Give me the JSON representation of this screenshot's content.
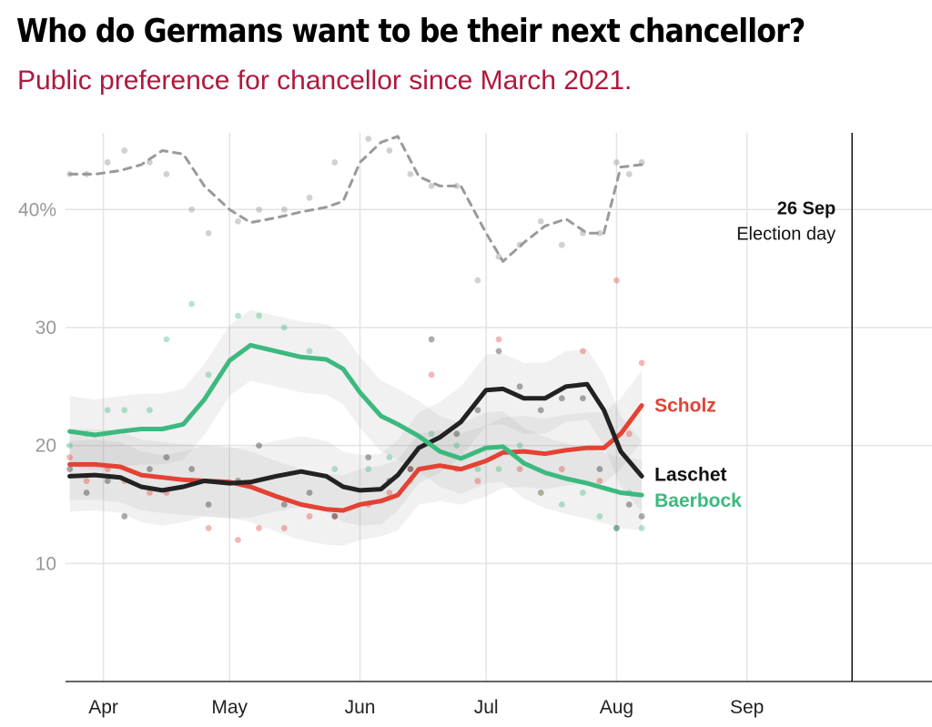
{
  "title": "Who do Germans want to be their next chancellor?",
  "subtitle": "Public preference for chancellor since March 2021.",
  "chart_data": {
    "type": "line",
    "x_axis": {
      "min": "2021-03-23",
      "max": "2021-10-15",
      "ticks": [
        {
          "date": "2021-04-01",
          "label": "Apr"
        },
        {
          "date": "2021-05-01",
          "label": "May"
        },
        {
          "date": "2021-06-01",
          "label": "Jun"
        },
        {
          "date": "2021-07-01",
          "label": "Jul"
        },
        {
          "date": "2021-08-01",
          "label": "Aug"
        },
        {
          "date": "2021-09-01",
          "label": "Sep"
        }
      ]
    },
    "y_axis": {
      "min": 0,
      "max": 46.5,
      "ticks": [
        {
          "value": 10,
          "label": "10"
        },
        {
          "value": 20,
          "label": "20"
        },
        {
          "value": 30,
          "label": "30"
        },
        {
          "value": 40,
          "label": "40%"
        }
      ]
    },
    "grid": true,
    "annotation": {
      "date": "2021-09-26",
      "label_date": "26 Sep",
      "label_text": "Election day"
    },
    "series": [
      {
        "name": "Scholz",
        "color": "#e34234",
        "x": [
          "2021-03-24",
          "2021-03-30",
          "2021-04-05",
          "2021-04-10",
          "2021-04-15",
          "2021-04-20",
          "2021-04-25",
          "2021-05-01",
          "2021-05-06",
          "2021-05-12",
          "2021-05-18",
          "2021-05-24",
          "2021-05-28",
          "2021-06-01",
          "2021-06-06",
          "2021-06-10",
          "2021-06-15",
          "2021-06-20",
          "2021-06-25",
          "2021-07-01",
          "2021-07-05",
          "2021-07-10",
          "2021-07-15",
          "2021-07-20",
          "2021-07-25",
          "2021-07-29",
          "2021-08-02",
          "2021-08-07"
        ],
        "values": [
          18.4,
          18.4,
          18.2,
          17.5,
          17.3,
          17.1,
          17.0,
          16.9,
          16.5,
          15.7,
          15.0,
          14.6,
          14.5,
          15.0,
          15.3,
          15.8,
          18.0,
          18.3,
          18.0,
          18.7,
          19.4,
          19.5,
          19.3,
          19.6,
          19.8,
          19.8,
          21.0,
          23.4
        ]
      },
      {
        "name": "Laschet",
        "color": "#222222",
        "x": [
          "2021-03-24",
          "2021-03-30",
          "2021-04-05",
          "2021-04-10",
          "2021-04-15",
          "2021-04-20",
          "2021-04-25",
          "2021-05-01",
          "2021-05-06",
          "2021-05-12",
          "2021-05-18",
          "2021-05-24",
          "2021-05-28",
          "2021-06-01",
          "2021-06-06",
          "2021-06-10",
          "2021-06-15",
          "2021-06-20",
          "2021-06-25",
          "2021-07-01",
          "2021-07-05",
          "2021-07-10",
          "2021-07-15",
          "2021-07-20",
          "2021-07-25",
          "2021-07-29",
          "2021-08-02",
          "2021-08-07"
        ],
        "values": [
          17.4,
          17.5,
          17.3,
          16.5,
          16.2,
          16.5,
          17.0,
          16.8,
          16.9,
          17.4,
          17.8,
          17.4,
          16.5,
          16.2,
          16.3,
          17.5,
          19.8,
          20.7,
          22.0,
          24.7,
          24.8,
          24.0,
          24.0,
          25.0,
          25.2,
          23.0,
          19.5,
          17.4
        ]
      },
      {
        "name": "Baerbock",
        "color": "#3cb97f",
        "x": [
          "2021-03-24",
          "2021-03-30",
          "2021-04-05",
          "2021-04-10",
          "2021-04-15",
          "2021-04-20",
          "2021-04-25",
          "2021-05-01",
          "2021-05-06",
          "2021-05-12",
          "2021-05-18",
          "2021-05-24",
          "2021-05-28",
          "2021-06-01",
          "2021-06-06",
          "2021-06-10",
          "2021-06-15",
          "2021-06-20",
          "2021-06-25",
          "2021-07-01",
          "2021-07-05",
          "2021-07-10",
          "2021-07-15",
          "2021-07-20",
          "2021-07-25",
          "2021-07-29",
          "2021-08-02",
          "2021-08-07"
        ],
        "values": [
          21.2,
          20.9,
          21.2,
          21.4,
          21.4,
          21.8,
          23.9,
          27.2,
          28.5,
          28.0,
          27.5,
          27.3,
          26.5,
          24.5,
          22.5,
          21.8,
          20.8,
          19.5,
          18.9,
          19.8,
          19.9,
          18.5,
          17.7,
          17.2,
          16.8,
          16.4,
          16.0,
          15.8
        ]
      },
      {
        "name": "None",
        "color": "#9a9a9a",
        "dashed": true,
        "x": [
          "2021-03-24",
          "2021-03-30",
          "2021-04-05",
          "2021-04-10",
          "2021-04-15",
          "2021-04-20",
          "2021-04-25",
          "2021-05-01",
          "2021-05-06",
          "2021-05-12",
          "2021-05-18",
          "2021-05-24",
          "2021-05-28",
          "2021-06-01",
          "2021-06-06",
          "2021-06-10",
          "2021-06-15",
          "2021-06-20",
          "2021-06-25",
          "2021-07-01",
          "2021-07-05",
          "2021-07-10",
          "2021-07-15",
          "2021-07-20",
          "2021-07-25",
          "2021-07-29",
          "2021-08-02",
          "2021-08-07"
        ],
        "values": [
          43.0,
          43.0,
          43.3,
          43.8,
          45.0,
          44.7,
          42.0,
          40.0,
          38.9,
          39.3,
          39.8,
          40.2,
          40.7,
          44.0,
          45.7,
          46.2,
          42.8,
          42.0,
          42.0,
          38.0,
          35.6,
          37.2,
          38.6,
          39.2,
          38.0,
          38.0,
          43.6,
          43.8
        ]
      }
    ],
    "polls": {
      "x": [
        "2021-03-24",
        "2021-03-28",
        "2021-04-02",
        "2021-04-06",
        "2021-04-12",
        "2021-04-16",
        "2021-04-22",
        "2021-04-26",
        "2021-05-03",
        "2021-05-08",
        "2021-05-14",
        "2021-05-20",
        "2021-05-26",
        "2021-06-03",
        "2021-06-08",
        "2021-06-13",
        "2021-06-18",
        "2021-06-24",
        "2021-06-29",
        "2021-07-04",
        "2021-07-09",
        "2021-07-14",
        "2021-07-19",
        "2021-07-24",
        "2021-07-28",
        "2021-08-01",
        "2021-08-04",
        "2021-08-07"
      ],
      "Scholz": [
        19,
        17,
        18,
        17,
        16,
        16,
        17,
        13,
        12,
        13,
        13,
        14,
        14,
        15,
        16,
        18,
        26,
        18,
        17,
        29,
        18,
        16,
        18,
        28,
        17,
        34,
        21,
        27
      ],
      "Laschet": [
        18,
        16,
        17,
        14,
        18,
        19,
        18,
        15,
        17,
        20,
        15,
        16,
        14,
        19,
        17,
        18,
        29,
        21,
        23,
        28,
        25,
        23,
        24,
        24,
        18,
        13,
        15,
        14
      ],
      "Baerbock": [
        20,
        21,
        23,
        23,
        23,
        29,
        32,
        26,
        31,
        31,
        30,
        28,
        18,
        18,
        19,
        17,
        21,
        20,
        18,
        18,
        20,
        16,
        15,
        16,
        14,
        13,
        16,
        13
      ],
      "None": [
        43,
        43,
        44,
        45,
        44,
        43,
        40,
        38,
        39,
        40,
        40,
        41,
        44,
        46,
        45,
        43,
        42,
        42,
        34,
        36,
        37,
        39,
        37,
        38,
        38,
        44,
        43,
        44
      ]
    }
  }
}
